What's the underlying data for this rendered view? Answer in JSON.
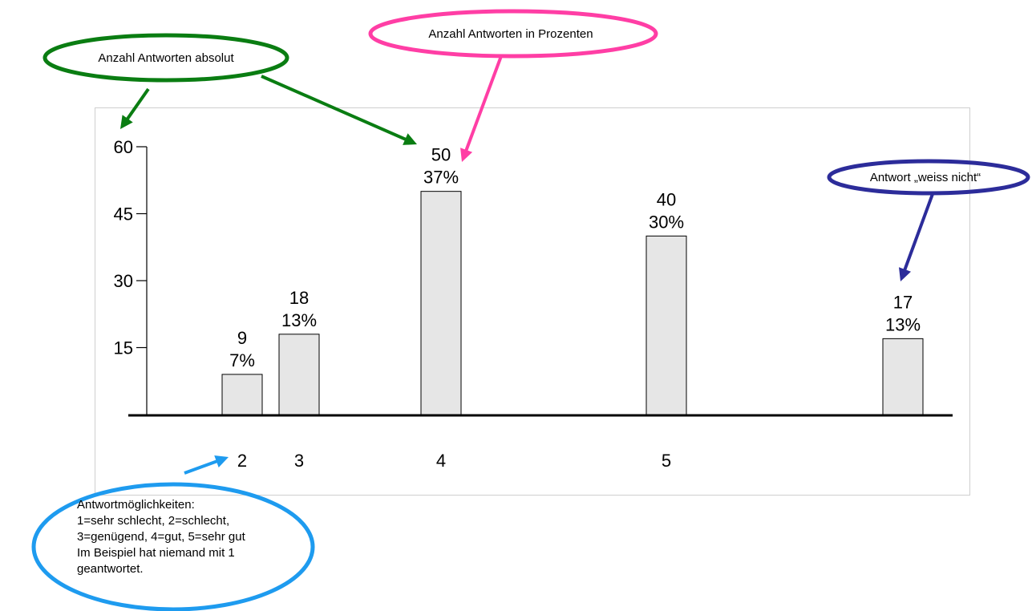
{
  "chart_data": {
    "type": "bar",
    "categories": [
      "2",
      "3",
      "4",
      "5",
      ""
    ],
    "values": [
      9,
      18,
      50,
      40,
      17
    ],
    "percent_labels": [
      "7%",
      "13%",
      "37%",
      "30%",
      "13%"
    ],
    "yticks": [
      15,
      30,
      45,
      60
    ],
    "ylim": [
      0,
      60
    ],
    "bar_color": "#e6e6e6",
    "bar_border": "#000000"
  },
  "annotations": {
    "absolute": {
      "text": "Anzahl Antworten absolut",
      "color": "#0a7d12"
    },
    "percent": {
      "text": "Anzahl Antworten in Prozenten",
      "color": "#ff3ea5"
    },
    "dont_know": {
      "text": "Antwort „weiss nicht“",
      "color": "#2c2c9a"
    },
    "options": {
      "color": "#1e9bef",
      "lines": [
        "Antwortmöglichkeiten:",
        "1=sehr schlecht, 2=schlecht,",
        "3=genügend, 4=gut, 5=sehr gut",
        "Im Beispiel hat niemand mit 1",
        "geantwortet."
      ]
    }
  }
}
